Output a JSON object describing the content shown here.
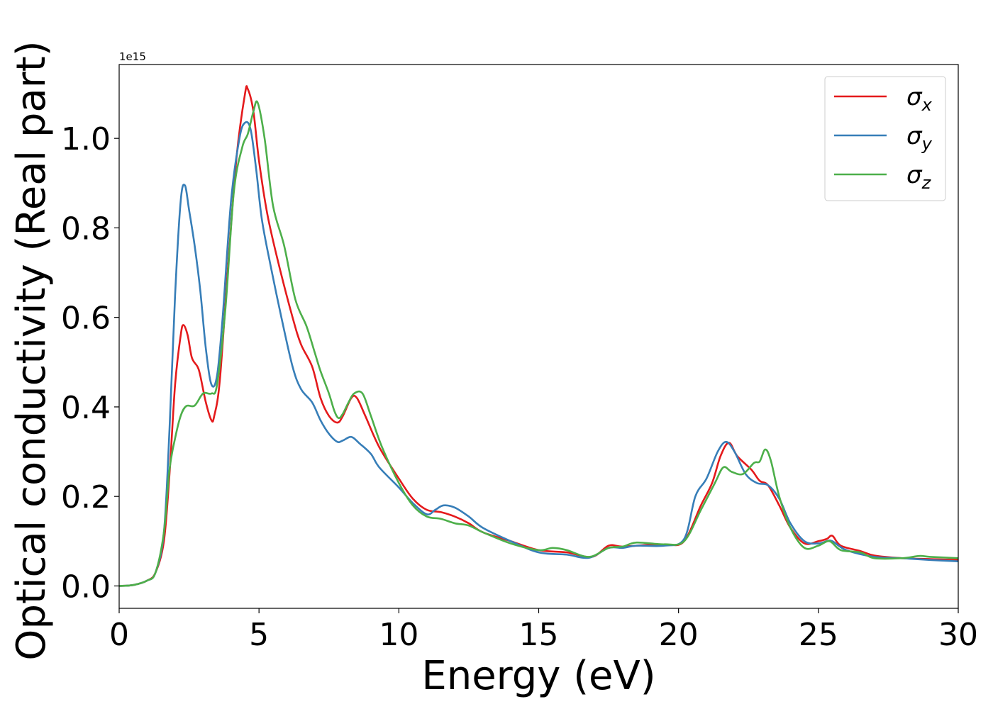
{
  "chart_data": {
    "type": "line",
    "title": "",
    "xlabel": "Energy (eV)",
    "ylabel": "Optical conductivity (Real part)",
    "offset_text": "1e15",
    "xlim": [
      0,
      30
    ],
    "ylim": [
      -0.05,
      1.165
    ],
    "x_ticks": [
      0,
      5,
      10,
      15,
      20,
      25,
      30
    ],
    "y_ticks": [
      0.0,
      0.2,
      0.4,
      0.6,
      0.8,
      1.0
    ],
    "x_tick_labels": [
      "0",
      "5",
      "10",
      "15",
      "20",
      "25",
      "30"
    ],
    "y_tick_labels": [
      "0.0",
      "0.2",
      "0.4",
      "0.6",
      "0.8",
      "1.0"
    ],
    "grid": false,
    "legend_position": "upper-right",
    "series": [
      {
        "name": "σx",
        "symbol": "σ",
        "subscript": "x",
        "color": "#e41a1c",
        "points": [
          [
            0,
            0
          ],
          [
            0.5,
            0.002
          ],
          [
            1.0,
            0.012
          ],
          [
            1.3,
            0.03
          ],
          [
            1.6,
            0.1
          ],
          [
            1.8,
            0.25
          ],
          [
            2.0,
            0.45
          ],
          [
            2.2,
            0.56
          ],
          [
            2.3,
            0.583
          ],
          [
            2.45,
            0.56
          ],
          [
            2.6,
            0.51
          ],
          [
            2.8,
            0.49
          ],
          [
            2.9,
            0.47
          ],
          [
            3.1,
            0.41
          ],
          [
            3.3,
            0.37
          ],
          [
            3.4,
            0.38
          ],
          [
            3.6,
            0.46
          ],
          [
            3.9,
            0.72
          ],
          [
            4.2,
            0.96
          ],
          [
            4.5,
            1.1
          ],
          [
            4.6,
            1.11
          ],
          [
            4.8,
            1.06
          ],
          [
            5.0,
            0.95
          ],
          [
            5.3,
            0.83
          ],
          [
            5.7,
            0.72
          ],
          [
            6.2,
            0.6
          ],
          [
            6.5,
            0.54
          ],
          [
            6.9,
            0.49
          ],
          [
            7.2,
            0.42
          ],
          [
            7.5,
            0.38
          ],
          [
            7.8,
            0.365
          ],
          [
            8.0,
            0.38
          ],
          [
            8.3,
            0.42
          ],
          [
            8.5,
            0.42
          ],
          [
            8.8,
            0.38
          ],
          [
            9.3,
            0.31
          ],
          [
            10.0,
            0.24
          ],
          [
            10.5,
            0.195
          ],
          [
            11.0,
            0.17
          ],
          [
            11.5,
            0.165
          ],
          [
            12.0,
            0.155
          ],
          [
            12.5,
            0.14
          ],
          [
            13.0,
            0.12
          ],
          [
            14.0,
            0.1
          ],
          [
            15.0,
            0.08
          ],
          [
            16.0,
            0.075
          ],
          [
            16.9,
            0.065
          ],
          [
            17.5,
            0.09
          ],
          [
            18.0,
            0.088
          ],
          [
            19.0,
            0.092
          ],
          [
            19.6,
            0.092
          ],
          [
            20.2,
            0.1
          ],
          [
            20.8,
            0.18
          ],
          [
            21.2,
            0.23
          ],
          [
            21.5,
            0.29
          ],
          [
            21.8,
            0.32
          ],
          [
            22.1,
            0.29
          ],
          [
            22.6,
            0.26
          ],
          [
            22.9,
            0.235
          ],
          [
            23.2,
            0.225
          ],
          [
            23.6,
            0.18
          ],
          [
            24.0,
            0.13
          ],
          [
            24.5,
            0.095
          ],
          [
            25.0,
            0.1
          ],
          [
            25.3,
            0.105
          ],
          [
            25.5,
            0.112
          ],
          [
            25.8,
            0.09
          ],
          [
            26.5,
            0.078
          ],
          [
            27.0,
            0.068
          ],
          [
            28.0,
            0.062
          ],
          [
            29.0,
            0.06
          ],
          [
            30.0,
            0.058
          ]
        ]
      },
      {
        "name": "σy",
        "symbol": "σ",
        "subscript": "y",
        "color": "#377eb8",
        "points": [
          [
            0,
            0
          ],
          [
            0.5,
            0.002
          ],
          [
            1.0,
            0.012
          ],
          [
            1.3,
            0.03
          ],
          [
            1.6,
            0.12
          ],
          [
            1.8,
            0.35
          ],
          [
            2.0,
            0.65
          ],
          [
            2.2,
            0.86
          ],
          [
            2.35,
            0.895
          ],
          [
            2.5,
            0.84
          ],
          [
            2.7,
            0.76
          ],
          [
            2.9,
            0.66
          ],
          [
            3.1,
            0.53
          ],
          [
            3.3,
            0.45
          ],
          [
            3.5,
            0.47
          ],
          [
            3.7,
            0.6
          ],
          [
            4.0,
            0.86
          ],
          [
            4.3,
            1.0
          ],
          [
            4.5,
            1.035
          ],
          [
            4.7,
            1.02
          ],
          [
            4.9,
            0.93
          ],
          [
            5.1,
            0.82
          ],
          [
            5.4,
            0.72
          ],
          [
            5.8,
            0.6
          ],
          [
            6.2,
            0.49
          ],
          [
            6.5,
            0.44
          ],
          [
            6.9,
            0.41
          ],
          [
            7.2,
            0.37
          ],
          [
            7.5,
            0.34
          ],
          [
            7.8,
            0.322
          ],
          [
            8.0,
            0.325
          ],
          [
            8.3,
            0.333
          ],
          [
            8.6,
            0.318
          ],
          [
            9.0,
            0.295
          ],
          [
            9.3,
            0.265
          ],
          [
            10.0,
            0.22
          ],
          [
            10.5,
            0.185
          ],
          [
            11.0,
            0.16
          ],
          [
            11.3,
            0.17
          ],
          [
            11.6,
            0.18
          ],
          [
            12.0,
            0.175
          ],
          [
            12.5,
            0.155
          ],
          [
            13.0,
            0.13
          ],
          [
            14.0,
            0.1
          ],
          [
            15.0,
            0.075
          ],
          [
            16.0,
            0.07
          ],
          [
            16.8,
            0.063
          ],
          [
            17.5,
            0.085
          ],
          [
            18.0,
            0.085
          ],
          [
            18.5,
            0.09
          ],
          [
            19.5,
            0.09
          ],
          [
            20.2,
            0.105
          ],
          [
            20.6,
            0.2
          ],
          [
            21.0,
            0.24
          ],
          [
            21.4,
            0.3
          ],
          [
            21.7,
            0.322
          ],
          [
            22.0,
            0.3
          ],
          [
            22.4,
            0.25
          ],
          [
            22.8,
            0.23
          ],
          [
            23.2,
            0.225
          ],
          [
            23.6,
            0.195
          ],
          [
            24.0,
            0.14
          ],
          [
            24.5,
            0.1
          ],
          [
            25.0,
            0.095
          ],
          [
            25.3,
            0.1
          ],
          [
            25.5,
            0.1
          ],
          [
            26.0,
            0.08
          ],
          [
            27.0,
            0.065
          ],
          [
            28.0,
            0.062
          ],
          [
            29.0,
            0.058
          ],
          [
            30.0,
            0.055
          ]
        ]
      },
      {
        "name": "σz",
        "symbol": "σ",
        "subscript": "z",
        "color": "#4daf4a",
        "points": [
          [
            0,
            0
          ],
          [
            0.5,
            0.002
          ],
          [
            1.0,
            0.012
          ],
          [
            1.3,
            0.03
          ],
          [
            1.6,
            0.12
          ],
          [
            1.8,
            0.26
          ],
          [
            2.0,
            0.33
          ],
          [
            2.2,
            0.38
          ],
          [
            2.4,
            0.402
          ],
          [
            2.7,
            0.403
          ],
          [
            3.0,
            0.43
          ],
          [
            3.3,
            0.43
          ],
          [
            3.5,
            0.45
          ],
          [
            3.8,
            0.62
          ],
          [
            4.1,
            0.88
          ],
          [
            4.4,
            0.98
          ],
          [
            4.6,
            1.01
          ],
          [
            4.8,
            1.06
          ],
          [
            4.95,
            1.08
          ],
          [
            5.2,
            1.0
          ],
          [
            5.5,
            0.85
          ],
          [
            5.9,
            0.76
          ],
          [
            6.3,
            0.64
          ],
          [
            6.7,
            0.58
          ],
          [
            7.0,
            0.52
          ],
          [
            7.2,
            0.48
          ],
          [
            7.5,
            0.43
          ],
          [
            7.7,
            0.39
          ],
          [
            7.85,
            0.375
          ],
          [
            8.0,
            0.385
          ],
          [
            8.2,
            0.41
          ],
          [
            8.4,
            0.43
          ],
          [
            8.7,
            0.43
          ],
          [
            9.0,
            0.38
          ],
          [
            9.4,
            0.31
          ],
          [
            10.0,
            0.23
          ],
          [
            10.5,
            0.18
          ],
          [
            11.0,
            0.155
          ],
          [
            11.5,
            0.15
          ],
          [
            12.0,
            0.14
          ],
          [
            12.5,
            0.135
          ],
          [
            13.0,
            0.12
          ],
          [
            14.0,
            0.095
          ],
          [
            15.0,
            0.08
          ],
          [
            15.5,
            0.085
          ],
          [
            16.0,
            0.08
          ],
          [
            16.8,
            0.065
          ],
          [
            17.5,
            0.085
          ],
          [
            18.0,
            0.088
          ],
          [
            18.5,
            0.097
          ],
          [
            19.5,
            0.093
          ],
          [
            20.2,
            0.1
          ],
          [
            20.8,
            0.17
          ],
          [
            21.3,
            0.23
          ],
          [
            21.6,
            0.265
          ],
          [
            21.9,
            0.255
          ],
          [
            22.3,
            0.25
          ],
          [
            22.7,
            0.275
          ],
          [
            22.9,
            0.278
          ],
          [
            23.1,
            0.305
          ],
          [
            23.3,
            0.28
          ],
          [
            23.6,
            0.2
          ],
          [
            24.0,
            0.13
          ],
          [
            24.5,
            0.085
          ],
          [
            25.0,
            0.09
          ],
          [
            25.4,
            0.1
          ],
          [
            25.8,
            0.08
          ],
          [
            26.5,
            0.075
          ],
          [
            27.0,
            0.062
          ],
          [
            28.0,
            0.062
          ],
          [
            28.6,
            0.067
          ],
          [
            29.0,
            0.065
          ],
          [
            30.0,
            0.062
          ]
        ]
      }
    ]
  }
}
